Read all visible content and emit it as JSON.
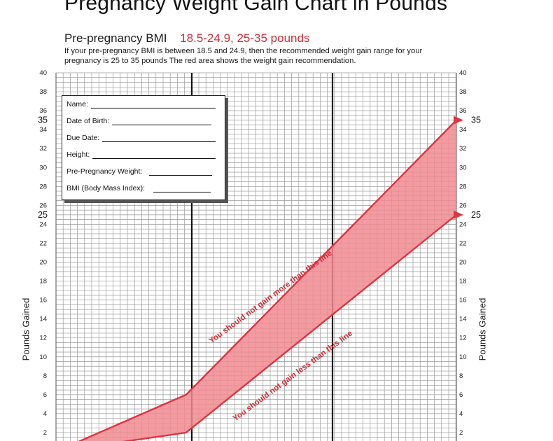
{
  "header": {
    "title": "Pregnancy Weight Gain Chart in Pounds",
    "bmi_label": "Pre-pregnancy BMI",
    "bmi_range": "18.5-24.9, 25-35 pounds",
    "description": "If your pre-pregnancy BMI is between 18.5 and 24.9, then the recommended weight gain range for your pregnancy is 25 to 35 pounds The red area shows the weight gain recommendation."
  },
  "form": {
    "fields": [
      {
        "label": "Name:"
      },
      {
        "label": "Date of Birth:"
      },
      {
        "label": "Due Date:"
      },
      {
        "label": "Height:"
      },
      {
        "label": "Pre-Pregnancy Weight:"
      },
      {
        "label": "BMI (Body Mass Index):"
      }
    ]
  },
  "colors": {
    "band_fill": "#f08a90",
    "band_line": "#e0343f",
    "annotation": "#d52b35",
    "grid": "#9a9a9a"
  },
  "chart_data": {
    "type": "area",
    "ylabel": "Pounds Gained",
    "ylim": [
      0,
      40
    ],
    "yticks": [
      2,
      4,
      6,
      8,
      10,
      12,
      14,
      16,
      18,
      20,
      22,
      24,
      26,
      28,
      30,
      32,
      34,
      36,
      38,
      40
    ],
    "highlight_ticks": [
      "25",
      "35"
    ],
    "grid": true,
    "x": [
      0,
      13,
      40
    ],
    "series": [
      {
        "values": [
          0,
          6,
          35
        ]
      },
      {
        "values": [
          0,
          2,
          25
        ]
      }
    ],
    "annotations": [
      "You should not gain more than this line",
      "You should not gain less than this line"
    ]
  }
}
